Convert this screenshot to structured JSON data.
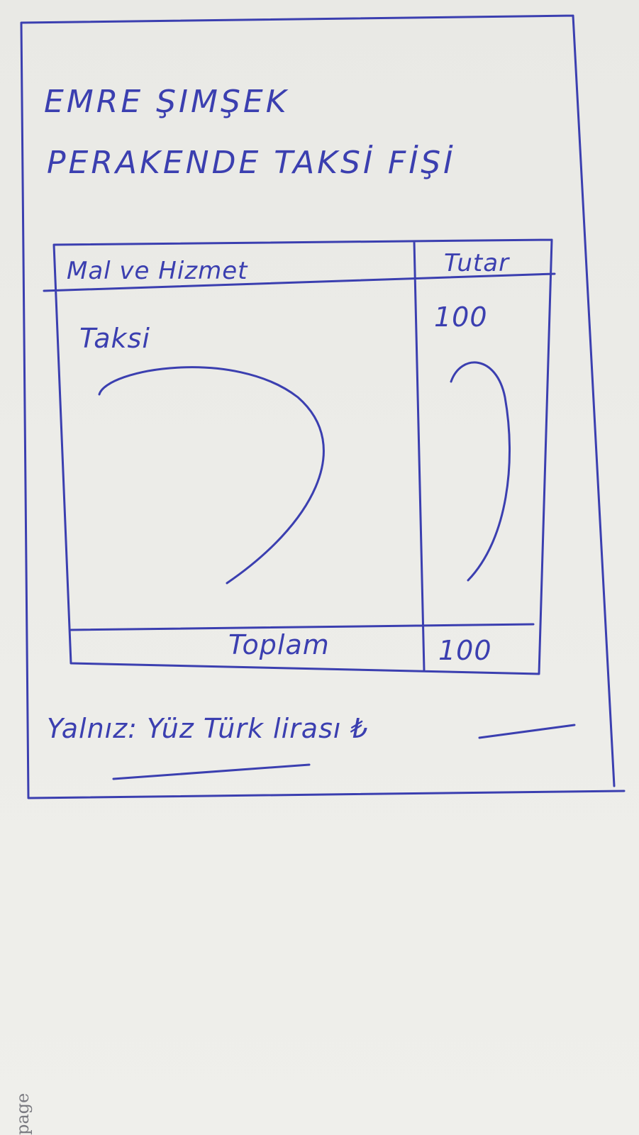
{
  "receipt": {
    "name": "EMRE ŞIMŞEK",
    "title": "PERAKENDE TAKSİ FİŞİ",
    "table": {
      "headers": {
        "item": "Mal ve Hizmet",
        "amount": "Tutar"
      },
      "rows": [
        {
          "item": "Taksi",
          "amount": "100"
        }
      ],
      "total_label": "Toplam",
      "total_value": "100"
    },
    "amount_in_words": "Yalnız: Yüz Türk lirası ₺"
  },
  "page_margin_text": "page",
  "colors": {
    "ink": "#3b3fb0",
    "paper": "#ecece8"
  }
}
